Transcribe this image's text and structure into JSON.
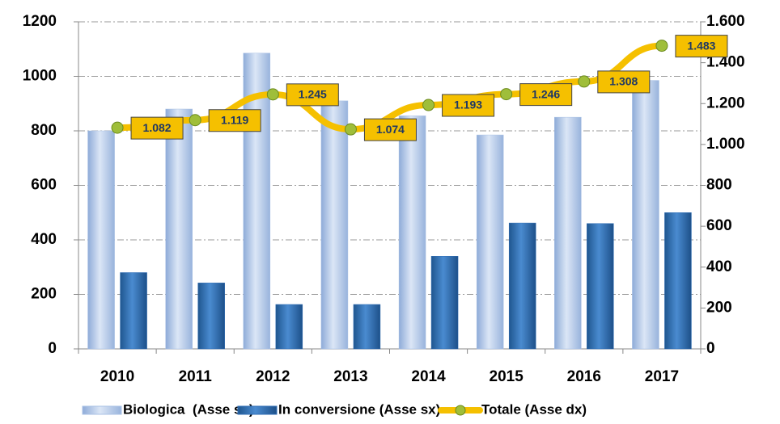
{
  "chart_data": {
    "type": "bar",
    "categories": [
      "2010",
      "2011",
      "2012",
      "2013",
      "2014",
      "2015",
      "2016",
      "2017"
    ],
    "series": [
      {
        "name": "Biologica  (Asse sx)",
        "color": "#a9c1e5",
        "type": "bar",
        "values": [
          800,
          880,
          1085,
          910,
          855,
          785,
          850,
          985
        ]
      },
      {
        "name": "In conversione (Asse sx)",
        "color": "#2f6db6",
        "type": "bar",
        "values": [
          280,
          242,
          163,
          163,
          340,
          462,
          460,
          500
        ]
      },
      {
        "name": "Totale (Asse dx)",
        "color": "#f5c000",
        "marker_color": "#9fbe3a",
        "type": "line",
        "axis": "y2",
        "values": [
          1082,
          1119,
          1245,
          1074,
          1193,
          1246,
          1308,
          1483
        ],
        "value_labels": [
          "1.082",
          "1.119",
          "1.245",
          "1.074",
          "1.193",
          "1.246",
          "1.308",
          "1.483"
        ]
      }
    ],
    "ylim": [
      0,
      1200
    ],
    "yticks": [
      0,
      200,
      400,
      600,
      800,
      1000,
      1200
    ],
    "y2lim": [
      0,
      1600
    ],
    "y2ticks": [
      0,
      200,
      400,
      600,
      800,
      {
        "value": 1000,
        "label": "1.000"
      },
      {
        "value": 1200,
        "label": "1.200"
      },
      {
        "value": 1400,
        "label": "1.400"
      },
      {
        "value": 1600,
        "label": "1.600"
      }
    ],
    "grid": true,
    "legend": "bottom"
  }
}
